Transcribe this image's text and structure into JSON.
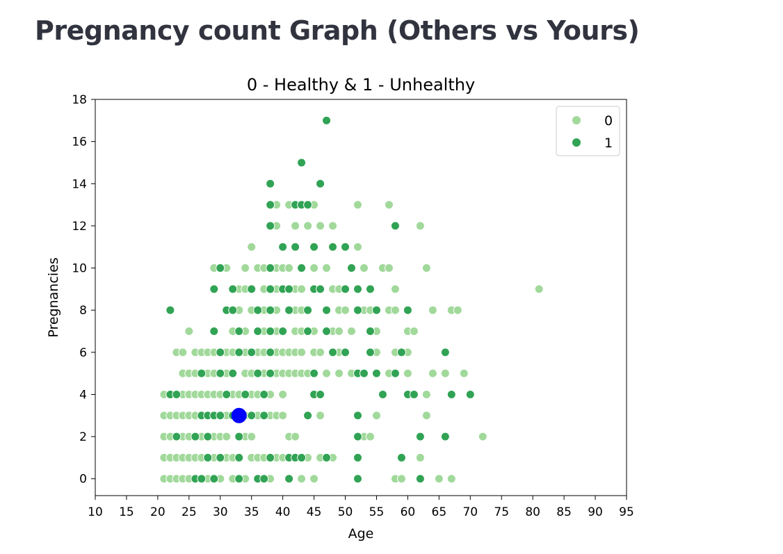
{
  "page": {
    "heading": "Pregnancy count Graph (Others vs Yours)"
  },
  "colors": {
    "class_0": "#a1d99b",
    "class_1": "#31a354",
    "yours": "#0000ff"
  },
  "chart_data": {
    "type": "scatter",
    "title": "0 - Healthy & 1 - Unhealthy",
    "xlabel": "Age",
    "ylabel": "Pregnancies",
    "xlim": [
      10,
      95
    ],
    "ylim": [
      -0.8,
      18
    ],
    "xticks": [
      10,
      15,
      20,
      25,
      30,
      35,
      40,
      45,
      50,
      55,
      60,
      65,
      70,
      75,
      80,
      85,
      90,
      95
    ],
    "yticks": [
      0,
      2,
      4,
      6,
      8,
      10,
      12,
      14,
      16,
      18
    ],
    "legend": {
      "placement": "top-right",
      "entries": [
        "0",
        "1"
      ]
    },
    "series": [
      {
        "name": "0",
        "color": "#a1d99b",
        "points": [
          [
            21,
            0
          ],
          [
            22,
            0
          ],
          [
            23,
            0
          ],
          [
            24,
            0
          ],
          [
            25,
            0
          ],
          [
            26,
            0
          ],
          [
            28,
            0
          ],
          [
            29,
            0
          ],
          [
            30,
            0
          ],
          [
            32,
            0
          ],
          [
            34,
            0
          ],
          [
            38,
            0
          ],
          [
            43,
            0
          ],
          [
            45,
            0
          ],
          [
            58,
            0
          ],
          [
            59,
            0
          ],
          [
            65,
            0
          ],
          [
            67,
            0
          ],
          [
            21,
            1
          ],
          [
            22,
            1
          ],
          [
            23,
            1
          ],
          [
            24,
            1
          ],
          [
            25,
            1
          ],
          [
            26,
            1
          ],
          [
            27,
            1
          ],
          [
            28,
            1
          ],
          [
            29,
            1
          ],
          [
            30,
            1
          ],
          [
            31,
            1
          ],
          [
            32,
            1
          ],
          [
            35,
            1
          ],
          [
            36,
            1
          ],
          [
            37,
            1
          ],
          [
            39,
            1
          ],
          [
            40,
            1
          ],
          [
            44,
            1
          ],
          [
            46,
            1
          ],
          [
            48,
            1
          ],
          [
            62,
            1
          ],
          [
            21,
            2
          ],
          [
            22,
            2
          ],
          [
            23,
            2
          ],
          [
            24,
            2
          ],
          [
            25,
            2
          ],
          [
            27,
            2
          ],
          [
            28,
            2
          ],
          [
            29,
            2
          ],
          [
            30,
            2
          ],
          [
            31,
            2
          ],
          [
            34,
            2
          ],
          [
            35,
            2
          ],
          [
            41,
            2
          ],
          [
            42,
            2
          ],
          [
            53,
            2
          ],
          [
            54,
            2
          ],
          [
            72,
            2
          ],
          [
            21,
            3
          ],
          [
            22,
            3
          ],
          [
            23,
            3
          ],
          [
            24,
            3
          ],
          [
            25,
            3
          ],
          [
            26,
            3
          ],
          [
            27,
            3
          ],
          [
            28,
            3
          ],
          [
            29,
            3
          ],
          [
            30,
            3
          ],
          [
            31,
            3
          ],
          [
            34,
            3
          ],
          [
            36,
            3
          ],
          [
            38,
            3
          ],
          [
            39,
            3
          ],
          [
            40,
            3
          ],
          [
            46,
            3
          ],
          [
            55,
            3
          ],
          [
            63,
            3
          ],
          [
            21,
            4
          ],
          [
            22,
            4
          ],
          [
            24,
            4
          ],
          [
            25,
            4
          ],
          [
            26,
            4
          ],
          [
            27,
            4
          ],
          [
            28,
            4
          ],
          [
            29,
            4
          ],
          [
            30,
            4
          ],
          [
            32,
            4
          ],
          [
            33,
            4
          ],
          [
            35,
            4
          ],
          [
            36,
            4
          ],
          [
            38,
            4
          ],
          [
            40,
            4
          ],
          [
            63,
            4
          ],
          [
            24,
            5
          ],
          [
            25,
            5
          ],
          [
            26,
            5
          ],
          [
            28,
            5
          ],
          [
            29,
            5
          ],
          [
            31,
            5
          ],
          [
            34,
            5
          ],
          [
            35,
            5
          ],
          [
            37,
            5
          ],
          [
            39,
            5
          ],
          [
            40,
            5
          ],
          [
            41,
            5
          ],
          [
            42,
            5
          ],
          [
            43,
            5
          ],
          [
            44,
            5
          ],
          [
            47,
            5
          ],
          [
            49,
            5
          ],
          [
            51,
            5
          ],
          [
            55,
            5
          ],
          [
            57,
            5
          ],
          [
            60,
            5
          ],
          [
            64,
            5
          ],
          [
            66,
            5
          ],
          [
            69,
            5
          ],
          [
            23,
            6
          ],
          [
            24,
            6
          ],
          [
            26,
            6
          ],
          [
            27,
            6
          ],
          [
            28,
            6
          ],
          [
            29,
            6
          ],
          [
            31,
            6
          ],
          [
            32,
            6
          ],
          [
            34,
            6
          ],
          [
            36,
            6
          ],
          [
            37,
            6
          ],
          [
            39,
            6
          ],
          [
            40,
            6
          ],
          [
            41,
            6
          ],
          [
            42,
            6
          ],
          [
            43,
            6
          ],
          [
            45,
            6
          ],
          [
            46,
            6
          ],
          [
            49,
            6
          ],
          [
            55,
            6
          ],
          [
            58,
            6
          ],
          [
            60,
            6
          ],
          [
            25,
            7
          ],
          [
            32,
            7
          ],
          [
            34,
            7
          ],
          [
            37,
            7
          ],
          [
            39,
            7
          ],
          [
            42,
            7
          ],
          [
            43,
            7
          ],
          [
            45,
            7
          ],
          [
            48,
            7
          ],
          [
            49,
            7
          ],
          [
            51,
            7
          ],
          [
            55,
            7
          ],
          [
            60,
            7
          ],
          [
            61,
            7
          ],
          [
            31,
            8
          ],
          [
            33,
            8
          ],
          [
            35,
            8
          ],
          [
            37,
            8
          ],
          [
            39,
            8
          ],
          [
            42,
            8
          ],
          [
            43,
            8
          ],
          [
            49,
            8
          ],
          [
            50,
            8
          ],
          [
            53,
            8
          ],
          [
            54,
            8
          ],
          [
            57,
            8
          ],
          [
            58,
            8
          ],
          [
            64,
            8
          ],
          [
            67,
            8
          ],
          [
            68,
            8
          ],
          [
            33,
            9
          ],
          [
            34,
            9
          ],
          [
            37,
            9
          ],
          [
            39,
            9
          ],
          [
            41,
            9
          ],
          [
            42,
            9
          ],
          [
            43,
            9
          ],
          [
            46,
            9
          ],
          [
            48,
            9
          ],
          [
            49,
            9
          ],
          [
            58,
            9
          ],
          [
            81,
            9
          ],
          [
            29,
            10
          ],
          [
            31,
            10
          ],
          [
            34,
            10
          ],
          [
            36,
            10
          ],
          [
            37,
            10
          ],
          [
            39,
            10
          ],
          [
            40,
            10
          ],
          [
            41,
            10
          ],
          [
            45,
            10
          ],
          [
            47,
            10
          ],
          [
            53,
            10
          ],
          [
            56,
            10
          ],
          [
            57,
            10
          ],
          [
            63,
            10
          ],
          [
            35,
            11
          ],
          [
            52,
            11
          ],
          [
            39,
            12
          ],
          [
            42,
            12
          ],
          [
            44,
            12
          ],
          [
            46,
            12
          ],
          [
            48,
            12
          ],
          [
            62,
            12
          ],
          [
            39,
            13
          ],
          [
            41,
            13
          ],
          [
            45,
            13
          ],
          [
            52,
            13
          ],
          [
            57,
            13
          ]
        ]
      },
      {
        "name": "1",
        "color": "#31a354",
        "points": [
          [
            26,
            0
          ],
          [
            27,
            0
          ],
          [
            29,
            0
          ],
          [
            33,
            0
          ],
          [
            36,
            0
          ],
          [
            37,
            0
          ],
          [
            41,
            0
          ],
          [
            52,
            0
          ],
          [
            62,
            0
          ],
          [
            28,
            1
          ],
          [
            30,
            1
          ],
          [
            33,
            1
          ],
          [
            38,
            1
          ],
          [
            41,
            1
          ],
          [
            42,
            1
          ],
          [
            43,
            1
          ],
          [
            47,
            1
          ],
          [
            52,
            1
          ],
          [
            59,
            1
          ],
          [
            23,
            2
          ],
          [
            26,
            2
          ],
          [
            28,
            2
          ],
          [
            33,
            2
          ],
          [
            52,
            2
          ],
          [
            62,
            2
          ],
          [
            66,
            2
          ],
          [
            27,
            3
          ],
          [
            28,
            3
          ],
          [
            29,
            3
          ],
          [
            30,
            3
          ],
          [
            32,
            3
          ],
          [
            35,
            3
          ],
          [
            37,
            3
          ],
          [
            44,
            3
          ],
          [
            52,
            3
          ],
          [
            22,
            4
          ],
          [
            23,
            4
          ],
          [
            31,
            4
          ],
          [
            34,
            4
          ],
          [
            37,
            4
          ],
          [
            45,
            4
          ],
          [
            46,
            4
          ],
          [
            56,
            4
          ],
          [
            60,
            4
          ],
          [
            61,
            4
          ],
          [
            67,
            4
          ],
          [
            70,
            4
          ],
          [
            27,
            5
          ],
          [
            30,
            5
          ],
          [
            32,
            5
          ],
          [
            36,
            5
          ],
          [
            38,
            5
          ],
          [
            45,
            5
          ],
          [
            52,
            5
          ],
          [
            53,
            5
          ],
          [
            55,
            5
          ],
          [
            58,
            5
          ],
          [
            30,
            6
          ],
          [
            33,
            6
          ],
          [
            35,
            6
          ],
          [
            38,
            6
          ],
          [
            48,
            6
          ],
          [
            50,
            6
          ],
          [
            54,
            6
          ],
          [
            59,
            6
          ],
          [
            66,
            6
          ],
          [
            22,
            8
          ],
          [
            31,
            8
          ],
          [
            32,
            8
          ],
          [
            36,
            8
          ],
          [
            38,
            8
          ],
          [
            41,
            8
          ],
          [
            44,
            8
          ],
          [
            47,
            8
          ],
          [
            52,
            8
          ],
          [
            55,
            8
          ],
          [
            60,
            8
          ],
          [
            29,
            7
          ],
          [
            33,
            7
          ],
          [
            36,
            7
          ],
          [
            38,
            7
          ],
          [
            40,
            7
          ],
          [
            44,
            7
          ],
          [
            47,
            7
          ],
          [
            54,
            7
          ],
          [
            29,
            9
          ],
          [
            32,
            9
          ],
          [
            35,
            9
          ],
          [
            38,
            9
          ],
          [
            40,
            9
          ],
          [
            41,
            9
          ],
          [
            45,
            9
          ],
          [
            46,
            9
          ],
          [
            50,
            9
          ],
          [
            52,
            9
          ],
          [
            54,
            9
          ],
          [
            30,
            10
          ],
          [
            38,
            10
          ],
          [
            43,
            10
          ],
          [
            51,
            10
          ],
          [
            40,
            11
          ],
          [
            42,
            11
          ],
          [
            45,
            11
          ],
          [
            48,
            11
          ],
          [
            50,
            11
          ],
          [
            38,
            12
          ],
          [
            58,
            12
          ],
          [
            38,
            13
          ],
          [
            42,
            13
          ],
          [
            43,
            13
          ],
          [
            44,
            13
          ],
          [
            38,
            14
          ],
          [
            46,
            14
          ],
          [
            43,
            15
          ],
          [
            47,
            17
          ]
        ]
      },
      {
        "name": "",
        "color": "#0000ff",
        "points": [
          [
            33,
            3
          ]
        ]
      }
    ]
  }
}
